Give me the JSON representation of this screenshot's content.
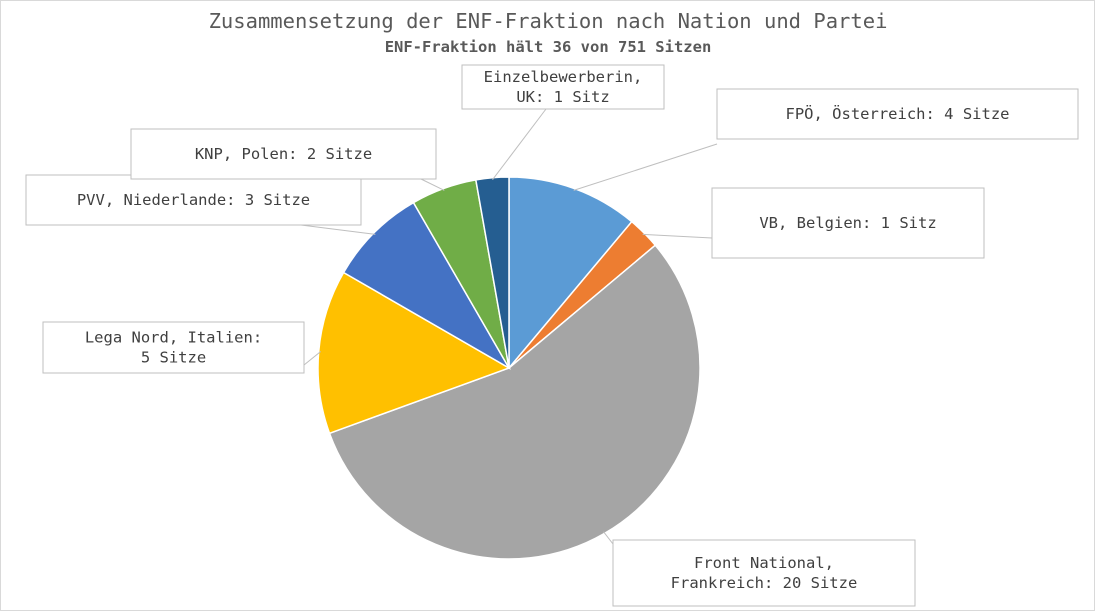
{
  "chart_data": {
    "type": "pie",
    "title": "Zusammensetzung der ENF-Fraktion nach Nation und Partei",
    "subtitle": "ENF-Fraktion hält 36 von 751 Sitzen",
    "slices": [
      {
        "party": "FPÖ",
        "country": "Österreich",
        "value": 4,
        "label_lines": [
          "FPÖ, Österreich: 4 Sitze"
        ],
        "color": "#5b9bd5"
      },
      {
        "party": "VB",
        "country": "Belgien",
        "value": 1,
        "label_lines": [
          "VB, Belgien: 1 Sitz"
        ],
        "color": "#ed7d31"
      },
      {
        "party": "Front National",
        "country": "Frankreich",
        "value": 20,
        "label_lines": [
          "Front National,",
          "Frankreich: 20 Sitze"
        ],
        "color": "#a5a5a5"
      },
      {
        "party": "Lega Nord",
        "country": "Italien",
        "value": 5,
        "label_lines": [
          "Lega Nord, Italien:",
          "5 Sitze"
        ],
        "color": "#ffc000"
      },
      {
        "party": "PVV",
        "country": "Niederlande",
        "value": 3,
        "label_lines": [
          "PVV, Niederlande: 3 Sitze"
        ],
        "color": "#4472c4"
      },
      {
        "party": "KNP",
        "country": "Polen",
        "value": 2,
        "label_lines": [
          "KNP, Polen: 2 Sitze"
        ],
        "color": "#70ad47"
      },
      {
        "party": "Einzelbewerberin",
        "country": "UK",
        "value": 1,
        "label_lines": [
          "Einzelbewerberin,",
          "UK: 1 Sitz"
        ],
        "color": "#255e91"
      }
    ],
    "total_seats_group": 36,
    "total_seats_parliament": 751,
    "legend": "none"
  }
}
